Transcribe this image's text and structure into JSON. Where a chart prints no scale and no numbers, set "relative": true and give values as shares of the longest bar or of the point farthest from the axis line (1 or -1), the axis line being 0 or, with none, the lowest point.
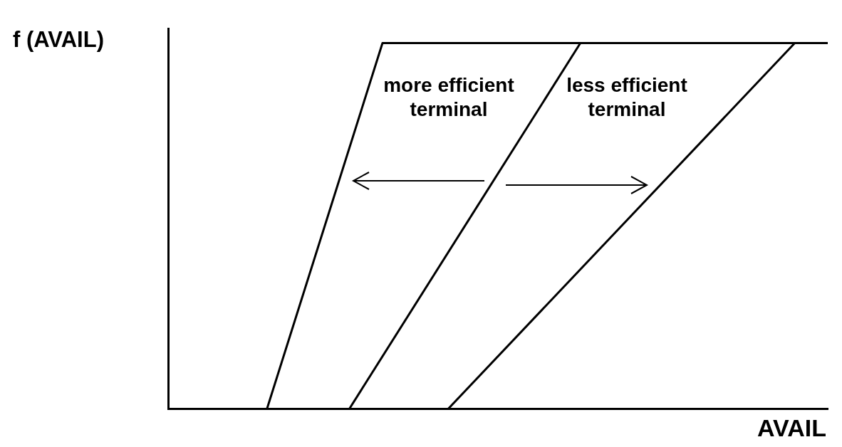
{
  "chart_data": {
    "type": "line",
    "relative": true,
    "xlabel": "AVAIL",
    "ylabel": "f (AVAIL)",
    "tick_labels": false,
    "grid": false,
    "legend": false,
    "marker": "none",
    "line_style": "solid",
    "annotations": [
      "more efficient terminal",
      "less efficient terminal"
    ],
    "categories": [
      null,
      null,
      null,
      null,
      null,
      null,
      null,
      null,
      null,
      null,
      null,
      null,
      null,
      null,
      null,
      null,
      null,
      null,
      null,
      null,
      null,
      null,
      null,
      null,
      null,
      null,
      null,
      null,
      null,
      null,
      null,
      null,
      null,
      null,
      null,
      null,
      null,
      null,
      null,
      null,
      null
    ],
    "series": [
      {
        "color": "#000000",
        "values": [
          null,
          null,
          null,
          null,
          null,
          null,
          0,
          null,
          null,
          null,
          null,
          null,
          null,
          1,
          null,
          null,
          null,
          null,
          null,
          null,
          null,
          null,
          null,
          null,
          null,
          null,
          null,
          null,
          null,
          null,
          null,
          null,
          null,
          null,
          null,
          null,
          null,
          null,
          null,
          null,
          1
        ]
      },
      {
        "color": "#000000",
        "values": [
          null,
          null,
          null,
          null,
          null,
          null,
          null,
          null,
          null,
          null,
          null,
          0,
          null,
          null,
          null,
          null,
          null,
          null,
          null,
          null,
          null,
          null,
          null,
          null,
          null,
          1,
          null,
          null,
          null,
          null,
          null,
          null,
          null,
          null,
          null,
          null,
          null,
          null,
          null,
          null,
          null
        ]
      },
      {
        "color": "#000000",
        "values": [
          null,
          null,
          null,
          null,
          null,
          null,
          null,
          null,
          null,
          null,
          null,
          null,
          null,
          null,
          null,
          null,
          null,
          0,
          null,
          null,
          null,
          null,
          null,
          null,
          null,
          null,
          null,
          null,
          null,
          null,
          null,
          null,
          null,
          null,
          null,
          null,
          null,
          null,
          1,
          null,
          null
        ]
      }
    ]
  }
}
